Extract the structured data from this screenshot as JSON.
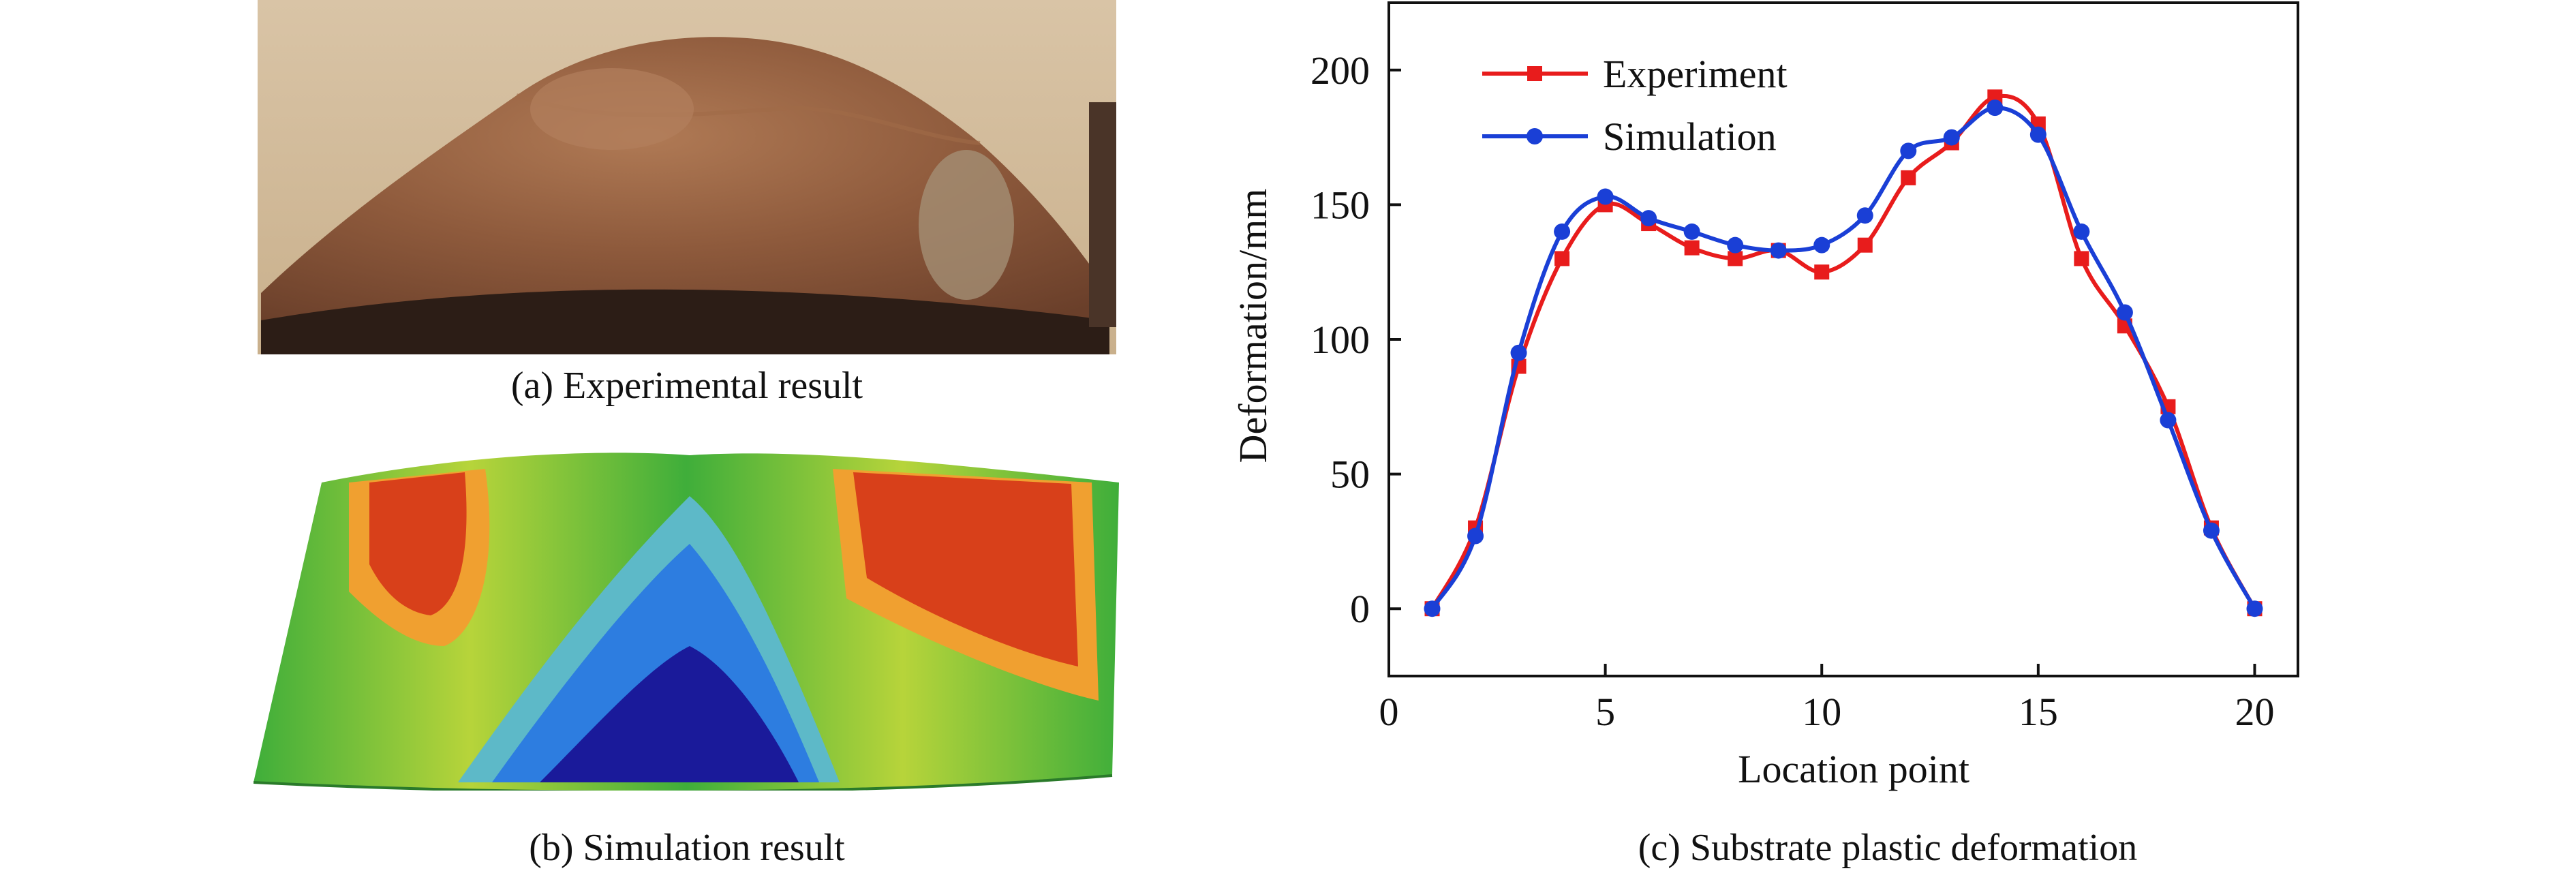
{
  "figure": {
    "captions": {
      "a": "(a) Experimental result",
      "b": "(b) Simulation result",
      "c": "(c) Substrate plastic deformation"
    }
  },
  "chart_data": {
    "type": "line",
    "title": "",
    "xlabel": "Location point",
    "ylabel": "Deformation/mm",
    "xlim": [
      0,
      21
    ],
    "ylim": [
      -25,
      225
    ],
    "xticks": [
      0,
      5,
      10,
      15,
      20
    ],
    "yticks": [
      0,
      50,
      100,
      150,
      200
    ],
    "grid": false,
    "legend_position": "top-left",
    "x": [
      1,
      2,
      3,
      4,
      5,
      6,
      7,
      8,
      9,
      10,
      11,
      12,
      13,
      14,
      15,
      16,
      17,
      18,
      19,
      20
    ],
    "series": [
      {
        "name": "Experiment",
        "color": "#e81c1c",
        "marker": "square",
        "values": [
          0,
          30,
          90,
          130,
          150,
          143,
          134,
          130,
          133,
          125,
          135,
          160,
          173,
          190,
          180,
          130,
          105,
          75,
          30,
          0
        ]
      },
      {
        "name": "Simulation",
        "color": "#1a3fd6",
        "marker": "circle",
        "values": [
          0,
          27,
          95,
          140,
          153,
          145,
          140,
          135,
          133,
          135,
          146,
          170,
          175,
          186,
          176,
          140,
          110,
          70,
          29,
          0
        ]
      }
    ]
  }
}
